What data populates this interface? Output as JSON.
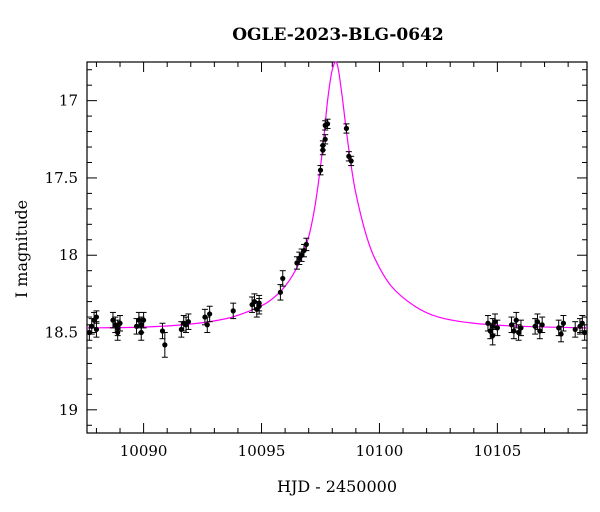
{
  "chart_data": {
    "type": "scatter",
    "title": "OGLE-2023-BLG-0642",
    "xlabel": "HJD - 2450000",
    "ylabel": "I magnitude",
    "xlim": [
      10087.6,
      10108.8
    ],
    "ylim": [
      19.15,
      16.75
    ],
    "y_inverted": true,
    "x_ticks": [
      10090,
      10095,
      10100,
      10105
    ],
    "y_ticks": [
      17,
      17.5,
      18,
      18.5,
      19
    ],
    "y_tick_labels": [
      "17",
      "17.5",
      "18",
      "18.5",
      "19"
    ],
    "grid": false,
    "colors": {
      "points": "#000000",
      "model": "#ff00ff"
    },
    "series": [
      {
        "kind": "points",
        "points": [
          {
            "x": 10087.7,
            "y": 18.5,
            "err": 0.05
          },
          {
            "x": 10087.8,
            "y": 18.46,
            "err": 0.05
          },
          {
            "x": 10087.9,
            "y": 18.42,
            "err": 0.05
          },
          {
            "x": 10088.0,
            "y": 18.48,
            "err": 0.05
          },
          {
            "x": 10088.0,
            "y": 18.4,
            "err": 0.04
          },
          {
            "x": 10088.7,
            "y": 18.42,
            "err": 0.05
          },
          {
            "x": 10088.8,
            "y": 18.45,
            "err": 0.05
          },
          {
            "x": 10088.9,
            "y": 18.5,
            "err": 0.05
          },
          {
            "x": 10088.9,
            "y": 18.47,
            "err": 0.05
          },
          {
            "x": 10089.0,
            "y": 18.44,
            "err": 0.05
          },
          {
            "x": 10089.7,
            "y": 18.46,
            "err": 0.05
          },
          {
            "x": 10089.8,
            "y": 18.42,
            "err": 0.05
          },
          {
            "x": 10089.9,
            "y": 18.5,
            "err": 0.05
          },
          {
            "x": 10089.9,
            "y": 18.45,
            "err": 0.05
          },
          {
            "x": 10090.0,
            "y": 18.42,
            "err": 0.05
          },
          {
            "x": 10090.8,
            "y": 18.49,
            "err": 0.05
          },
          {
            "x": 10090.9,
            "y": 18.58,
            "err": 0.08
          },
          {
            "x": 10091.6,
            "y": 18.48,
            "err": 0.05
          },
          {
            "x": 10091.7,
            "y": 18.44,
            "err": 0.05
          },
          {
            "x": 10091.8,
            "y": 18.45,
            "err": 0.05
          },
          {
            "x": 10091.9,
            "y": 18.43,
            "err": 0.05
          },
          {
            "x": 10092.6,
            "y": 18.4,
            "err": 0.05
          },
          {
            "x": 10092.7,
            "y": 18.45,
            "err": 0.05
          },
          {
            "x": 10092.8,
            "y": 18.38,
            "err": 0.05
          },
          {
            "x": 10093.8,
            "y": 18.36,
            "err": 0.05
          },
          {
            "x": 10094.6,
            "y": 18.32,
            "err": 0.05
          },
          {
            "x": 10094.7,
            "y": 18.3,
            "err": 0.05
          },
          {
            "x": 10094.8,
            "y": 18.35,
            "err": 0.05
          },
          {
            "x": 10094.9,
            "y": 18.31,
            "err": 0.05
          },
          {
            "x": 10094.9,
            "y": 18.33,
            "err": 0.05
          },
          {
            "x": 10095.8,
            "y": 18.24,
            "err": 0.05
          },
          {
            "x": 10095.9,
            "y": 18.15,
            "err": 0.05
          },
          {
            "x": 10096.5,
            "y": 18.05,
            "err": 0.04
          },
          {
            "x": 10096.6,
            "y": 18.02,
            "err": 0.04
          },
          {
            "x": 10096.7,
            "y": 18.0,
            "err": 0.04
          },
          {
            "x": 10096.8,
            "y": 17.97,
            "err": 0.04
          },
          {
            "x": 10096.9,
            "y": 17.93,
            "err": 0.04
          },
          {
            "x": 10097.5,
            "y": 17.45,
            "err": 0.03
          },
          {
            "x": 10097.6,
            "y": 17.32,
            "err": 0.03
          },
          {
            "x": 10097.6,
            "y": 17.29,
            "err": 0.03
          },
          {
            "x": 10097.7,
            "y": 17.25,
            "err": 0.03
          },
          {
            "x": 10097.7,
            "y": 17.16,
            "err": 0.03
          },
          {
            "x": 10097.8,
            "y": 17.15,
            "err": 0.03
          },
          {
            "x": 10098.6,
            "y": 17.18,
            "err": 0.03
          },
          {
            "x": 10098.7,
            "y": 17.36,
            "err": 0.03
          },
          {
            "x": 10098.8,
            "y": 17.39,
            "err": 0.03
          },
          {
            "x": 10104.6,
            "y": 18.44,
            "err": 0.05
          },
          {
            "x": 10104.7,
            "y": 18.49,
            "err": 0.05
          },
          {
            "x": 10104.8,
            "y": 18.52,
            "err": 0.06
          },
          {
            "x": 10104.8,
            "y": 18.46,
            "err": 0.05
          },
          {
            "x": 10104.9,
            "y": 18.43,
            "err": 0.05
          },
          {
            "x": 10105.0,
            "y": 18.47,
            "err": 0.05
          },
          {
            "x": 10105.6,
            "y": 18.45,
            "err": 0.05
          },
          {
            "x": 10105.7,
            "y": 18.49,
            "err": 0.05
          },
          {
            "x": 10105.8,
            "y": 18.42,
            "err": 0.05
          },
          {
            "x": 10105.9,
            "y": 18.5,
            "err": 0.05
          },
          {
            "x": 10106.0,
            "y": 18.47,
            "err": 0.05
          },
          {
            "x": 10106.6,
            "y": 18.46,
            "err": 0.05
          },
          {
            "x": 10106.7,
            "y": 18.43,
            "err": 0.05
          },
          {
            "x": 10106.8,
            "y": 18.49,
            "err": 0.05
          },
          {
            "x": 10106.9,
            "y": 18.45,
            "err": 0.05
          },
          {
            "x": 10107.6,
            "y": 18.47,
            "err": 0.05
          },
          {
            "x": 10107.7,
            "y": 18.51,
            "err": 0.05
          },
          {
            "x": 10107.8,
            "y": 18.44,
            "err": 0.05
          },
          {
            "x": 10108.3,
            "y": 18.48,
            "err": 0.05
          },
          {
            "x": 10108.5,
            "y": 18.46,
            "err": 0.05
          },
          {
            "x": 10108.6,
            "y": 18.44,
            "err": 0.05
          },
          {
            "x": 10108.7,
            "y": 18.5,
            "err": 0.05
          }
        ]
      },
      {
        "kind": "line",
        "points": [
          {
            "x": 10087.6,
            "y": 18.47
          },
          {
            "x": 10090.0,
            "y": 18.465
          },
          {
            "x": 10092.0,
            "y": 18.445
          },
          {
            "x": 10093.5,
            "y": 18.41
          },
          {
            "x": 10094.5,
            "y": 18.36
          },
          {
            "x": 10095.3,
            "y": 18.3
          },
          {
            "x": 10096.0,
            "y": 18.2
          },
          {
            "x": 10096.6,
            "y": 18.05
          },
          {
            "x": 10097.0,
            "y": 17.88
          },
          {
            "x": 10097.3,
            "y": 17.65
          },
          {
            "x": 10097.6,
            "y": 17.3
          },
          {
            "x": 10097.8,
            "y": 17.0
          },
          {
            "x": 10098.0,
            "y": 16.8
          },
          {
            "x": 10098.2,
            "y": 16.76
          },
          {
            "x": 10098.4,
            "y": 16.95
          },
          {
            "x": 10098.6,
            "y": 17.2
          },
          {
            "x": 10098.8,
            "y": 17.42
          },
          {
            "x": 10099.0,
            "y": 17.6
          },
          {
            "x": 10099.4,
            "y": 17.85
          },
          {
            "x": 10099.8,
            "y": 18.02
          },
          {
            "x": 10100.5,
            "y": 18.2
          },
          {
            "x": 10101.5,
            "y": 18.33
          },
          {
            "x": 10102.5,
            "y": 18.4
          },
          {
            "x": 10104.0,
            "y": 18.44
          },
          {
            "x": 10106.0,
            "y": 18.46
          },
          {
            "x": 10108.8,
            "y": 18.47
          }
        ]
      }
    ]
  }
}
